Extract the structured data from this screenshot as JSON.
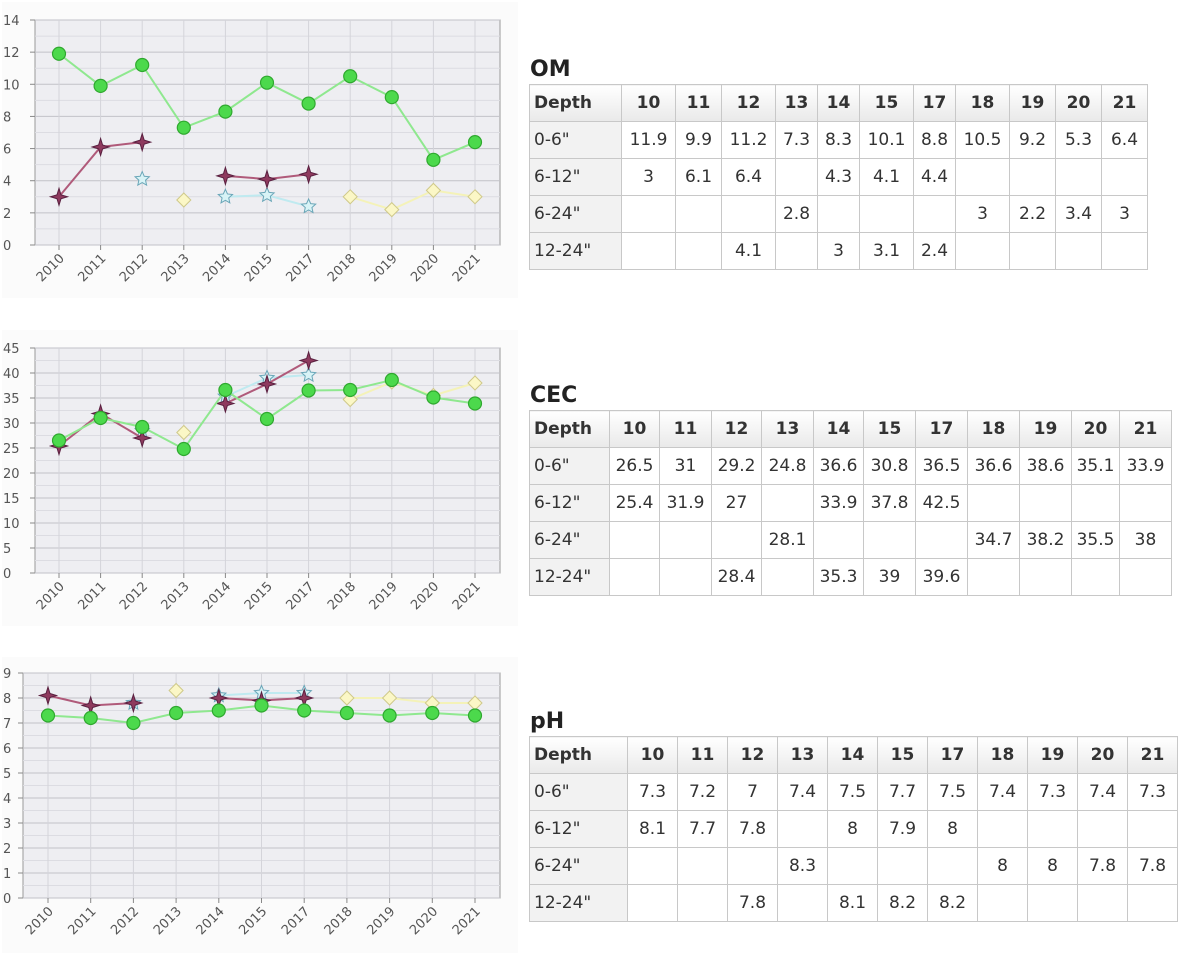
{
  "chart_data": [
    {
      "type": "line",
      "title": "OM",
      "x": [
        "2010",
        "2011",
        "2012",
        "2013",
        "2014",
        "2015",
        "2017",
        "2018",
        "2019",
        "2020",
        "2021"
      ],
      "ylim": [
        0,
        14
      ],
      "yticks": [
        0,
        2,
        4,
        6,
        8,
        10,
        12,
        14
      ],
      "grid": true,
      "series": [
        {
          "values": [
            11.9,
            9.9,
            11.2,
            7.3,
            8.3,
            10.1,
            8.8,
            10.5,
            9.2,
            5.3,
            6.4
          ],
          "color": "#8fe88f",
          "marker": "circle",
          "marker_color": "#4cd94c"
        },
        {
          "values": [
            3,
            6.1,
            6.4,
            null,
            4.3,
            4.1,
            4.4,
            null,
            null,
            null,
            null
          ],
          "color": "#b05a7a",
          "marker": "star4",
          "marker_color": "#8e3a5e"
        },
        {
          "values": [
            null,
            null,
            null,
            2.8,
            null,
            null,
            null,
            3,
            2.2,
            3.4,
            3
          ],
          "color": "#f4f2b8",
          "marker": "diamond",
          "marker_color": "#fbf7c6"
        },
        {
          "values": [
            null,
            null,
            4.1,
            null,
            3,
            3.1,
            2.4,
            null,
            null,
            null,
            null
          ],
          "color": "#bfeaf0",
          "marker": "star5",
          "marker_color": "#d8f3f6"
        }
      ]
    },
    {
      "type": "line",
      "title": "CEC",
      "x": [
        "2010",
        "2011",
        "2012",
        "2013",
        "2014",
        "2015",
        "2017",
        "2018",
        "2019",
        "2020",
        "2021"
      ],
      "ylim": [
        0,
        45
      ],
      "yticks": [
        0,
        5,
        10,
        15,
        20,
        25,
        30,
        35,
        40,
        45
      ],
      "grid": true,
      "series": [
        {
          "values": [
            26.5,
            31,
            29.2,
            24.8,
            36.6,
            30.8,
            36.5,
            36.6,
            38.6,
            35.1,
            33.9
          ],
          "color": "#8fe88f",
          "marker": "circle",
          "marker_color": "#4cd94c"
        },
        {
          "values": [
            25.4,
            31.9,
            27,
            null,
            33.9,
            37.8,
            42.5,
            null,
            null,
            null,
            null
          ],
          "color": "#b05a7a",
          "marker": "star4",
          "marker_color": "#8e3a5e"
        },
        {
          "values": [
            null,
            null,
            null,
            28.1,
            null,
            null,
            null,
            34.7,
            38.2,
            35.5,
            38
          ],
          "color": "#f4f2b8",
          "marker": "diamond",
          "marker_color": "#fbf7c6"
        },
        {
          "values": [
            null,
            null,
            28.4,
            null,
            35.3,
            39,
            39.6,
            null,
            null,
            null,
            null
          ],
          "color": "#bfeaf0",
          "marker": "star5",
          "marker_color": "#d8f3f6"
        }
      ]
    },
    {
      "type": "line",
      "title": "pH",
      "x": [
        "2010",
        "2011",
        "2012",
        "2013",
        "2014",
        "2015",
        "2017",
        "2018",
        "2019",
        "2020",
        "2021"
      ],
      "ylim": [
        0,
        9
      ],
      "yticks": [
        0,
        1,
        2,
        3,
        4,
        5,
        6,
        7,
        8,
        9
      ],
      "grid": true,
      "series": [
        {
          "values": [
            7.3,
            7.2,
            7,
            7.4,
            7.5,
            7.7,
            7.5,
            7.4,
            7.3,
            7.4,
            7.3
          ],
          "color": "#8fe88f",
          "marker": "circle",
          "marker_color": "#4cd94c"
        },
        {
          "values": [
            8.1,
            7.7,
            7.8,
            null,
            8,
            7.9,
            8,
            null,
            null,
            null,
            null
          ],
          "color": "#b05a7a",
          "marker": "star4",
          "marker_color": "#8e3a5e"
        },
        {
          "values": [
            null,
            null,
            null,
            8.3,
            null,
            null,
            null,
            8,
            8,
            7.8,
            7.8
          ],
          "color": "#f4f2b8",
          "marker": "diamond",
          "marker_color": "#fbf7c6"
        },
        {
          "values": [
            null,
            null,
            7.8,
            null,
            8.1,
            8.2,
            8.2,
            null,
            null,
            null,
            null
          ],
          "color": "#bfeaf0",
          "marker": "star5",
          "marker_color": "#d8f3f6"
        }
      ]
    }
  ],
  "tables": [
    {
      "title": "OM",
      "headers": [
        "Depth",
        "10",
        "11",
        "12",
        "13",
        "14",
        "15",
        "17",
        "18",
        "19",
        "20",
        "21"
      ],
      "rows": [
        [
          "0-6\"",
          "11.9",
          "9.9",
          "11.2",
          "7.3",
          "8.3",
          "10.1",
          "8.8",
          "10.5",
          "9.2",
          "5.3",
          "6.4"
        ],
        [
          "6-12\"",
          "3",
          "6.1",
          "6.4",
          "",
          "4.3",
          "4.1",
          "4.4",
          "",
          "",
          "",
          ""
        ],
        [
          "6-24\"",
          "",
          "",
          "",
          "2.8",
          "",
          "",
          "",
          "3",
          "2.2",
          "3.4",
          "3"
        ],
        [
          "12-24\"",
          "",
          "",
          "4.1",
          "",
          "3",
          "3.1",
          "2.4",
          "",
          "",
          "",
          ""
        ]
      ]
    },
    {
      "title": "CEC",
      "headers": [
        "Depth",
        "10",
        "11",
        "12",
        "13",
        "14",
        "15",
        "17",
        "18",
        "19",
        "20",
        "21"
      ],
      "rows": [
        [
          "0-6\"",
          "26.5",
          "31",
          "29.2",
          "24.8",
          "36.6",
          "30.8",
          "36.5",
          "36.6",
          "38.6",
          "35.1",
          "33.9"
        ],
        [
          "6-12\"",
          "25.4",
          "31.9",
          "27",
          "",
          "33.9",
          "37.8",
          "42.5",
          "",
          "",
          "",
          ""
        ],
        [
          "6-24\"",
          "",
          "",
          "",
          "28.1",
          "",
          "",
          "",
          "34.7",
          "38.2",
          "35.5",
          "38"
        ],
        [
          "12-24\"",
          "",
          "",
          "28.4",
          "",
          "35.3",
          "39",
          "39.6",
          "",
          "",
          "",
          ""
        ]
      ]
    },
    {
      "title": "pH",
      "headers": [
        "Depth",
        "10",
        "11",
        "12",
        "13",
        "14",
        "15",
        "17",
        "18",
        "19",
        "20",
        "21"
      ],
      "rows": [
        [
          "0-6\"",
          "7.3",
          "7.2",
          "7",
          "7.4",
          "7.5",
          "7.7",
          "7.5",
          "7.4",
          "7.3",
          "7.4",
          "7.3"
        ],
        [
          "6-12\"",
          "8.1",
          "7.7",
          "7.8",
          "",
          "8",
          "7.9",
          "8",
          "",
          "",
          "",
          ""
        ],
        [
          "6-24\"",
          "",
          "",
          "",
          "8.3",
          "",
          "",
          "",
          "8",
          "8",
          "7.8",
          "7.8"
        ],
        [
          "12-24\"",
          "",
          "",
          "7.8",
          "",
          "8.1",
          "8.2",
          "8.2",
          "",
          "",
          "",
          ""
        ]
      ]
    }
  ]
}
